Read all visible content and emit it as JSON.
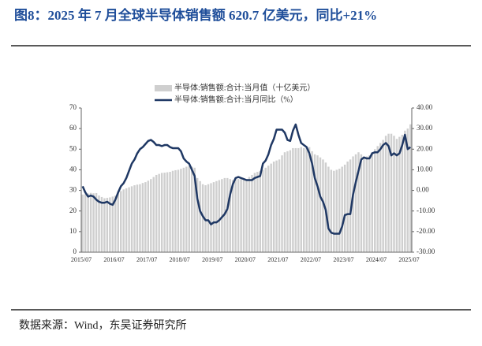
{
  "chart_data": {
    "type": "bar-line",
    "title": "图8：2025 年 7 月全球半导体销售额 620.7 亿美元，同比+21%",
    "source": "数据来源：Wind，东吴证券研究所",
    "categories": [
      "2015/07",
      null,
      null,
      null,
      null,
      null,
      null,
      null,
      null,
      null,
      null,
      null,
      "2016/07",
      null,
      null,
      null,
      null,
      null,
      null,
      null,
      null,
      null,
      null,
      null,
      "2017/07",
      null,
      null,
      null,
      null,
      null,
      null,
      null,
      null,
      null,
      null,
      null,
      "2018/07",
      null,
      null,
      null,
      null,
      null,
      null,
      null,
      null,
      null,
      null,
      null,
      "2019/07",
      null,
      null,
      null,
      null,
      null,
      null,
      null,
      null,
      null,
      null,
      null,
      "2020/07",
      null,
      null,
      null,
      null,
      null,
      null,
      null,
      null,
      null,
      null,
      null,
      "2021/07",
      null,
      null,
      null,
      null,
      null,
      null,
      null,
      null,
      null,
      null,
      null,
      "2022/07",
      null,
      null,
      null,
      null,
      null,
      null,
      null,
      null,
      null,
      null,
      null,
      "2023/07",
      null,
      null,
      null,
      null,
      null,
      null,
      null,
      null,
      null,
      null,
      null,
      "2024/07",
      null,
      null,
      null,
      null,
      null,
      null,
      null,
      null,
      null,
      null,
      null,
      "2025/07"
    ],
    "series": [
      {
        "name": "半导体:销售额:合计:当月值（十亿美元）",
        "type": "bar",
        "color": "#cfcfcf",
        "values": [
          28.0,
          28.2,
          28.5,
          28.8,
          28.6,
          28.7,
          27.5,
          26.8,
          26.2,
          26.4,
          26.6,
          27.0,
          27.5,
          28.6,
          29.7,
          30.5,
          31.0,
          31.5,
          32.0,
          32.5,
          32.8,
          33.0,
          33.6,
          34.0,
          34.7,
          35.5,
          36.5,
          37.5,
          38.0,
          38.5,
          38.6,
          38.8,
          39.0,
          39.5,
          39.8,
          40.0,
          40.5,
          41.0,
          41.5,
          41.8,
          41.5,
          41.0,
          36.0,
          34.5,
          33.0,
          32.5,
          33.0,
          33.5,
          34.0,
          34.5,
          35.0,
          35.5,
          36.0,
          36.0,
          35.5,
          35.0,
          35.5,
          35.5,
          35.5,
          35.0,
          35.5,
          36.5,
          37.5,
          38.5,
          39.0,
          39.5,
          40.0,
          41.0,
          42.0,
          43.0,
          44.0,
          44.5,
          45.0,
          47.0,
          48.5,
          49.0,
          49.5,
          50.5,
          50.5,
          50.5,
          51.0,
          50.5,
          51.0,
          51.0,
          49.0,
          47.5,
          47.0,
          46.0,
          45.0,
          43.5,
          41.5,
          40.0,
          39.5,
          40.0,
          40.5,
          41.5,
          42.5,
          44.0,
          45.0,
          46.5,
          47.5,
          48.5,
          47.5,
          46.5,
          46.5,
          47.0,
          48.5,
          50.0,
          51.5,
          53.0,
          54.5,
          56.5,
          57.5,
          57.5,
          56.5,
          55.0,
          56.0,
          57.0,
          59.0,
          60.0,
          62.07
        ]
      },
      {
        "name": "半导体:销售额:合计:当月同比（%）",
        "type": "line",
        "axis": "y2",
        "color": "#1f3864",
        "values": [
          2,
          -1,
          -3,
          -2.5,
          -3,
          -4.5,
          -5.5,
          -6,
          -6,
          -5.5,
          -6.5,
          -7,
          -4.5,
          -1,
          2,
          3.5,
          6,
          9.5,
          13,
          15,
          18,
          20,
          21,
          22.5,
          24,
          24.5,
          23.5,
          22,
          22,
          21.5,
          22,
          22,
          21,
          20.5,
          20.5,
          20.5,
          19,
          15.5,
          14,
          13,
          10,
          7,
          -4,
          -10,
          -12.5,
          -14.5,
          -14.5,
          -16.5,
          -15.5,
          -15.5,
          -14.5,
          -13,
          -11.5,
          -9,
          -2,
          3,
          6,
          6.5,
          6,
          5.5,
          5,
          5,
          5,
          6,
          6.5,
          7,
          13,
          14.5,
          17.5,
          22,
          25,
          29.5,
          29.5,
          29.5,
          28,
          24.5,
          24,
          29,
          32,
          27,
          23,
          22,
          21,
          18,
          13,
          6,
          2,
          -3,
          -5.5,
          -9.5,
          -18.5,
          -20.5,
          -21,
          -21,
          -21,
          -17.5,
          -12,
          -11.5,
          -11.5,
          -2,
          4,
          9.5,
          15,
          16,
          15.5,
          15.5,
          18,
          18.5,
          18.5,
          20,
          22,
          23,
          21.5,
          17,
          18,
          17,
          18,
          22,
          27,
          20,
          21
        ]
      }
    ],
    "ylim": [
      0,
      70
    ],
    "yticks": [
      0,
      10,
      20,
      30,
      40,
      50,
      60,
      70
    ],
    "y2lim": [
      -30,
      40
    ],
    "y2ticks": [
      {
        "value": -30,
        "label": "-30.00"
      },
      {
        "value": -20,
        "label": "-20.00"
      },
      {
        "value": -10,
        "label": "-10.00"
      },
      {
        "value": 0,
        "label": "0.00"
      },
      {
        "value": 10,
        "label": "10.00"
      },
      {
        "value": 20,
        "label": "20.00"
      },
      {
        "value": 30,
        "label": "30.00"
      },
      {
        "value": 40,
        "label": "40.00"
      }
    ]
  }
}
